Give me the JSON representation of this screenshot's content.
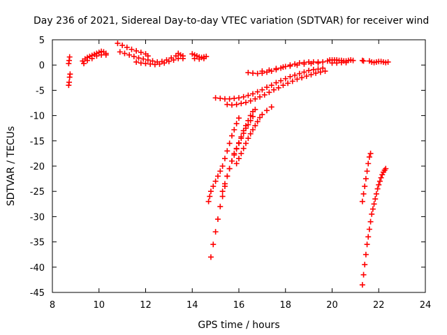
{
  "chart_data": {
    "type": "scatter",
    "title": "Day 236 of 2021, Sidereal Day-to-day VTEC variation (SDTVAR) for receiver wind",
    "xlabel": "GPS time / hours",
    "ylabel": "SDTVAR / TECUs",
    "xlim": [
      8,
      24
    ],
    "ylim": [
      -45,
      5
    ],
    "xticks": [
      "8",
      "10",
      "12",
      "14",
      "16",
      "18",
      "20",
      "22",
      "24"
    ],
    "yticks": [
      "5",
      "0",
      "-5",
      "-10",
      "-15",
      "-20",
      "-25",
      "-30",
      "-35",
      "-40",
      "-45"
    ],
    "grid": false,
    "marker": "+",
    "color": "#ff0000",
    "series": [
      {
        "points": [
          [
            8.7,
            -4.0
          ],
          [
            8.72,
            -3.4
          ],
          [
            8.74,
            -2.4
          ],
          [
            8.76,
            -1.8
          ],
          [
            8.7,
            0.3
          ],
          [
            8.72,
            0.9
          ],
          [
            8.74,
            1.6
          ]
        ]
      },
      {
        "points": [
          [
            9.3,
            0.8
          ],
          [
            9.4,
            1.2
          ],
          [
            9.5,
            1.5
          ],
          [
            9.6,
            1.7
          ],
          [
            9.7,
            1.9
          ],
          [
            9.8,
            2.1
          ],
          [
            9.9,
            2.3
          ],
          [
            10.0,
            2.5
          ],
          [
            10.1,
            2.7
          ],
          [
            10.2,
            2.6
          ],
          [
            10.3,
            2.3
          ],
          [
            9.35,
            0.3
          ],
          [
            9.5,
            0.9
          ],
          [
            9.7,
            1.3
          ],
          [
            9.9,
            1.8
          ],
          [
            10.1,
            2.0
          ],
          [
            10.3,
            2.0
          ]
        ]
      },
      {
        "points": [
          [
            10.8,
            4.3
          ],
          [
            11.0,
            3.9
          ],
          [
            11.2,
            3.5
          ],
          [
            11.4,
            3.1
          ],
          [
            11.6,
            2.8
          ],
          [
            11.8,
            2.5
          ],
          [
            12.0,
            2.2
          ],
          [
            12.1,
            1.8
          ]
        ]
      },
      {
        "points": [
          [
            10.9,
            2.6
          ],
          [
            11.1,
            2.3
          ],
          [
            11.3,
            2.0
          ],
          [
            11.5,
            1.7
          ],
          [
            11.7,
            1.4
          ],
          [
            11.9,
            1.2
          ],
          [
            12.1,
            1.0
          ],
          [
            12.3,
            0.8
          ],
          [
            12.5,
            0.6
          ],
          [
            12.7,
            0.7
          ],
          [
            12.9,
            1.0
          ],
          [
            13.1,
            1.4
          ],
          [
            13.3,
            1.8
          ],
          [
            13.4,
            2.3
          ]
        ]
      },
      {
        "points": [
          [
            11.6,
            0.6
          ],
          [
            11.8,
            0.4
          ],
          [
            12.0,
            0.3
          ],
          [
            12.2,
            0.2
          ],
          [
            12.4,
            0.1
          ],
          [
            12.6,
            0.2
          ],
          [
            12.8,
            0.4
          ],
          [
            13.0,
            0.7
          ],
          [
            13.2,
            1.0
          ],
          [
            13.4,
            1.3
          ]
        ]
      },
      {
        "points": [
          [
            13.5,
            2.0
          ],
          [
            13.6,
            1.8
          ],
          [
            13.6,
            1.3
          ]
        ]
      },
      {
        "points": [
          [
            14.0,
            2.2
          ],
          [
            14.1,
            2.0
          ],
          [
            14.2,
            1.8
          ],
          [
            14.3,
            1.6
          ],
          [
            14.4,
            1.5
          ],
          [
            14.5,
            1.6
          ],
          [
            14.6,
            1.7
          ],
          [
            14.1,
            1.3
          ],
          [
            14.3,
            1.2
          ],
          [
            14.5,
            1.3
          ]
        ]
      },
      {
        "points": [
          [
            15.0,
            -6.5
          ],
          [
            15.2,
            -6.6
          ],
          [
            15.4,
            -6.7
          ],
          [
            15.6,
            -6.7
          ],
          [
            15.8,
            -6.6
          ],
          [
            16.0,
            -6.5
          ],
          [
            16.2,
            -6.3
          ],
          [
            16.4,
            -6.0
          ],
          [
            16.6,
            -5.7
          ],
          [
            16.8,
            -5.3
          ],
          [
            17.0,
            -4.9
          ],
          [
            17.2,
            -4.4
          ],
          [
            17.4,
            -4.0
          ],
          [
            17.6,
            -3.5
          ],
          [
            17.8,
            -3.1
          ],
          [
            18.0,
            -2.7
          ],
          [
            18.2,
            -2.3
          ],
          [
            18.4,
            -2.0
          ],
          [
            18.6,
            -1.7
          ],
          [
            18.8,
            -1.4
          ],
          [
            19.0,
            -1.1
          ],
          [
            19.2,
            -0.9
          ],
          [
            19.4,
            -0.8
          ],
          [
            19.6,
            -0.6
          ]
        ]
      },
      {
        "points": [
          [
            15.5,
            -7.8
          ],
          [
            15.7,
            -7.9
          ],
          [
            15.9,
            -7.8
          ],
          [
            16.1,
            -7.6
          ],
          [
            16.3,
            -7.4
          ],
          [
            16.5,
            -7.1
          ],
          [
            16.7,
            -6.7
          ],
          [
            16.9,
            -6.3
          ],
          [
            17.1,
            -5.9
          ],
          [
            17.3,
            -5.4
          ],
          [
            17.5,
            -4.9
          ],
          [
            17.7,
            -4.5
          ],
          [
            17.9,
            -4.0
          ],
          [
            18.1,
            -3.6
          ],
          [
            18.3,
            -3.2
          ],
          [
            18.5,
            -2.8
          ],
          [
            18.7,
            -2.5
          ],
          [
            18.9,
            -2.2
          ],
          [
            19.1,
            -1.9
          ],
          [
            19.3,
            -1.6
          ],
          [
            19.5,
            -1.4
          ],
          [
            19.7,
            -1.2
          ]
        ]
      },
      {
        "points": [
          [
            16.4,
            -1.5
          ],
          [
            16.6,
            -1.6
          ],
          [
            16.8,
            -1.7
          ],
          [
            17.0,
            -1.6
          ],
          [
            17.2,
            -1.4
          ],
          [
            17.4,
            -1.2
          ],
          [
            17.6,
            -0.9
          ],
          [
            17.8,
            -0.6
          ],
          [
            18.0,
            -0.3
          ],
          [
            18.2,
            0.0
          ],
          [
            18.4,
            0.2
          ],
          [
            18.6,
            0.4
          ],
          [
            18.8,
            0.5
          ],
          [
            19.0,
            0.6
          ],
          [
            19.2,
            0.6
          ],
          [
            19.4,
            0.6
          ],
          [
            19.6,
            0.6
          ]
        ]
      },
      {
        "points": [
          [
            17.0,
            -1.2
          ],
          [
            17.3,
            -1.0
          ],
          [
            17.6,
            -0.7
          ],
          [
            17.9,
            -0.4
          ],
          [
            18.2,
            -0.2
          ],
          [
            18.5,
            0.0
          ],
          [
            18.8,
            0.2
          ],
          [
            19.1,
            0.3
          ],
          [
            19.4,
            0.4
          ]
        ]
      },
      {
        "points": [
          [
            19.8,
            0.8
          ],
          [
            19.9,
            1.0
          ],
          [
            20.0,
            1.0
          ],
          [
            20.1,
            1.0
          ],
          [
            20.2,
            1.0
          ],
          [
            20.3,
            0.9
          ],
          [
            20.4,
            0.9
          ],
          [
            20.5,
            0.8
          ],
          [
            20.6,
            0.8
          ],
          [
            20.7,
            0.9
          ],
          [
            20.8,
            1.0
          ],
          [
            20.9,
            0.9
          ],
          [
            20.0,
            0.4
          ],
          [
            20.2,
            0.4
          ],
          [
            20.4,
            0.5
          ],
          [
            20.6,
            0.5
          ]
        ]
      },
      {
        "points": [
          [
            21.3,
            0.9
          ],
          [
            21.35,
            0.8
          ]
        ]
      },
      {
        "points": [
          [
            21.6,
            0.8
          ],
          [
            21.7,
            0.6
          ],
          [
            21.8,
            0.5
          ],
          [
            21.9,
            0.6
          ],
          [
            22.0,
            0.7
          ],
          [
            22.1,
            0.7
          ],
          [
            22.2,
            0.6
          ],
          [
            22.3,
            0.5
          ],
          [
            22.4,
            0.6
          ]
        ]
      },
      {
        "points": [
          [
            14.7,
            -27.0
          ],
          [
            14.75,
            -26.0
          ],
          [
            14.8,
            -25.0
          ],
          [
            14.9,
            -24.0
          ],
          [
            15.0,
            -23.0
          ],
          [
            15.1,
            -22.0
          ],
          [
            15.2,
            -21.0
          ],
          [
            15.3,
            -20.0
          ],
          [
            15.4,
            -18.5
          ],
          [
            15.5,
            -17.0
          ],
          [
            15.6,
            -15.5
          ],
          [
            15.7,
            -14.0
          ],
          [
            15.8,
            -12.8
          ],
          [
            15.9,
            -11.6
          ],
          [
            16.0,
            -10.5
          ]
        ]
      },
      {
        "points": [
          [
            14.8,
            -38.0
          ],
          [
            14.9,
            -35.5
          ],
          [
            15.0,
            -33.0
          ],
          [
            15.1,
            -30.5
          ],
          [
            15.2,
            -28.0
          ],
          [
            15.3,
            -26.0
          ],
          [
            15.4,
            -24.0
          ],
          [
            15.5,
            -22.0
          ],
          [
            15.6,
            -20.5
          ],
          [
            15.7,
            -19.0
          ],
          [
            15.8,
            -17.5
          ],
          [
            15.9,
            -16.5
          ],
          [
            16.0,
            -15.5
          ],
          [
            16.1,
            -14.5
          ],
          [
            16.2,
            -13.5
          ],
          [
            16.3,
            -12.5
          ],
          [
            16.4,
            -11.8
          ],
          [
            16.5,
            -11.0
          ],
          [
            16.6,
            -10.2
          ]
        ]
      },
      {
        "points": [
          [
            15.3,
            -25.0
          ],
          [
            15.4,
            -23.5
          ],
          [
            15.5,
            -22.0
          ],
          [
            15.6,
            -20.5
          ],
          [
            15.7,
            -19.0
          ],
          [
            15.8,
            -17.8
          ],
          [
            15.9,
            -16.6
          ],
          [
            16.0,
            -15.4
          ],
          [
            16.1,
            -14.2
          ],
          [
            16.2,
            -13.0
          ],
          [
            16.3,
            -12.0
          ],
          [
            16.4,
            -11.0
          ],
          [
            16.5,
            -10.0
          ],
          [
            16.6,
            -9.2
          ],
          [
            16.7,
            -8.8
          ]
        ]
      },
      {
        "points": [
          [
            15.9,
            -19.5
          ],
          [
            16.0,
            -18.5
          ],
          [
            16.1,
            -17.5
          ],
          [
            16.2,
            -16.5
          ],
          [
            16.3,
            -15.5
          ],
          [
            16.4,
            -14.5
          ],
          [
            16.5,
            -13.6
          ],
          [
            16.6,
            -12.8
          ],
          [
            16.7,
            -12.0
          ],
          [
            16.8,
            -11.2
          ],
          [
            16.9,
            -10.4
          ],
          [
            17.0,
            -9.8
          ],
          [
            17.2,
            -9.0
          ],
          [
            17.4,
            -8.3
          ]
        ]
      },
      {
        "points": [
          [
            21.3,
            -27.0
          ],
          [
            21.35,
            -25.5
          ],
          [
            21.4,
            -24.0
          ],
          [
            21.45,
            -22.5
          ],
          [
            21.5,
            -21.0
          ],
          [
            21.55,
            -19.5
          ],
          [
            21.6,
            -18.2
          ],
          [
            21.65,
            -17.5
          ]
        ]
      },
      {
        "points": [
          [
            21.3,
            -43.5
          ],
          [
            21.35,
            -41.5
          ],
          [
            21.4,
            -39.5
          ],
          [
            21.45,
            -37.5
          ],
          [
            21.5,
            -35.5
          ],
          [
            21.55,
            -34.0
          ],
          [
            21.6,
            -32.5
          ],
          [
            21.65,
            -31.0
          ],
          [
            21.7,
            -29.5
          ],
          [
            21.75,
            -28.5
          ],
          [
            21.8,
            -27.5
          ],
          [
            21.85,
            -26.5
          ],
          [
            21.9,
            -25.5
          ],
          [
            21.95,
            -24.5
          ],
          [
            22.0,
            -23.7
          ],
          [
            22.05,
            -23.0
          ],
          [
            22.1,
            -22.3
          ],
          [
            22.15,
            -21.7
          ],
          [
            22.2,
            -21.2
          ],
          [
            22.25,
            -20.8
          ],
          [
            22.3,
            -20.5
          ]
        ]
      }
    ]
  }
}
